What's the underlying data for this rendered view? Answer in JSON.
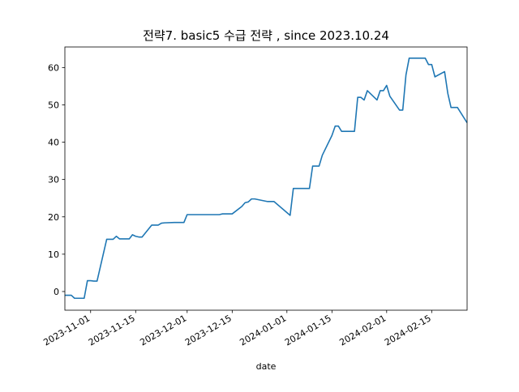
{
  "chart_data": {
    "type": "line",
    "title": "전략7. basic5 수급 전략 , since 2023.10.24",
    "xlabel": "date",
    "ylabel": "",
    "xlim": [
      "2023-10-24",
      "2024-02-26"
    ],
    "ylim": [
      -5,
      65.5
    ],
    "y_ticks": [
      0,
      10,
      20,
      30,
      40,
      50,
      60
    ],
    "x_ticks": [
      "2023-11-01",
      "2023-11-15",
      "2023-12-01",
      "2023-12-15",
      "2024-01-01",
      "2024-01-15",
      "2024-02-01",
      "2024-02-15"
    ],
    "grid": false,
    "line_color": "#1f77b4",
    "series": [
      {
        "x": [
          "2023-10-24",
          "2023-10-26",
          "2023-10-27",
          "2023-10-30",
          "2023-10-31",
          "2023-11-01",
          "2023-11-02",
          "2023-11-03",
          "2023-11-06",
          "2023-11-07",
          "2023-11-08",
          "2023-11-09",
          "2023-11-10",
          "2023-11-13",
          "2023-11-14",
          "2023-11-15",
          "2023-11-16",
          "2023-11-17",
          "2023-11-20",
          "2023-11-21",
          "2023-11-22",
          "2023-11-23",
          "2023-11-24",
          "2023-11-27",
          "2023-11-28",
          "2023-11-29",
          "2023-11-30",
          "2023-12-01",
          "2023-12-04",
          "2023-12-05",
          "2023-12-06",
          "2023-12-07",
          "2023-12-08",
          "2023-12-11",
          "2023-12-12",
          "2023-12-13",
          "2023-12-14",
          "2023-12-15",
          "2023-12-18",
          "2023-12-19",
          "2023-12-20",
          "2023-12-21",
          "2023-12-22",
          "2023-12-26",
          "2023-12-27",
          "2023-12-28",
          "2024-01-02",
          "2024-01-03",
          "2024-01-04",
          "2024-01-05",
          "2024-01-08",
          "2024-01-09",
          "2024-01-10",
          "2024-01-11",
          "2024-01-12",
          "2024-01-15",
          "2024-01-16",
          "2024-01-17",
          "2024-01-18",
          "2024-01-19",
          "2024-01-22",
          "2024-01-23",
          "2024-01-24",
          "2024-01-25",
          "2024-01-26",
          "2024-01-29",
          "2024-01-30",
          "2024-01-31",
          "2024-02-01",
          "2024-02-02",
          "2024-02-05",
          "2024-02-06",
          "2024-02-07",
          "2024-02-08",
          "2024-02-13",
          "2024-02-14",
          "2024-02-15",
          "2024-02-16",
          "2024-02-19",
          "2024-02-20",
          "2024-02-21",
          "2024-02-22",
          "2024-02-23",
          "2024-02-26"
        ],
        "values": [
          -1.0,
          -1.0,
          -1.8,
          -1.8,
          2.9,
          2.9,
          2.8,
          2.8,
          14.0,
          14.0,
          14.0,
          14.8,
          14.1,
          14.1,
          15.2,
          14.8,
          14.6,
          14.6,
          17.8,
          17.8,
          17.8,
          18.3,
          18.4,
          18.5,
          18.5,
          18.5,
          18.5,
          20.6,
          20.6,
          20.6,
          20.6,
          20.6,
          20.6,
          20.6,
          20.8,
          20.8,
          20.8,
          20.8,
          22.8,
          23.8,
          24.0,
          24.8,
          24.8,
          24.1,
          24.1,
          24.1,
          20.4,
          27.6,
          27.6,
          27.6,
          27.6,
          33.6,
          33.6,
          33.6,
          36.5,
          41.8,
          44.3,
          44.3,
          42.9,
          42.9,
          42.9,
          52.0,
          52.0,
          51.3,
          53.8,
          51.3,
          53.8,
          53.8,
          55.2,
          52.3,
          48.6,
          48.6,
          58.0,
          62.5,
          62.5,
          60.8,
          60.8,
          57.5,
          58.9,
          53.1,
          49.3,
          49.3,
          49.3,
          45.2
        ]
      }
    ]
  }
}
